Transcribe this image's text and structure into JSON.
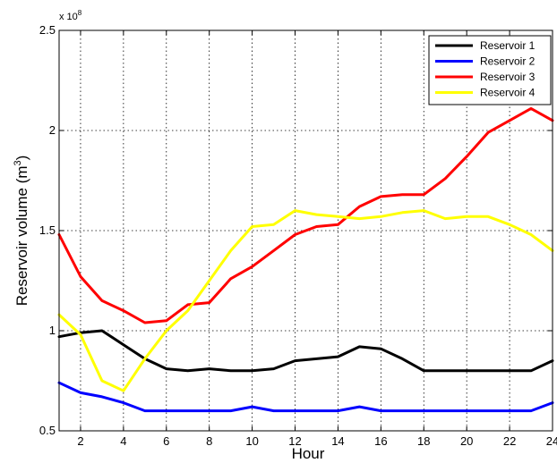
{
  "chart_data": {
    "type": "line",
    "title": "",
    "xlabel": "Hour",
    "ylabel": "Reservoir volume (m",
    "ylabel_superscript": "3",
    "ylabel_close": ")",
    "y_exponent_label": "x 10",
    "y_exponent_power": "8",
    "xlim": [
      1,
      24
    ],
    "ylim": [
      0.5,
      2.5
    ],
    "xticks": [
      2,
      4,
      6,
      8,
      10,
      12,
      14,
      16,
      18,
      20,
      22,
      24
    ],
    "xtick_labels": [
      "2",
      "4",
      "6",
      "8",
      "10",
      "12",
      "14",
      "16",
      "18",
      "20",
      "22",
      "24"
    ],
    "yticks": [
      0.5,
      1,
      1.5,
      2,
      2.5
    ],
    "ytick_labels": [
      "0.5",
      "1",
      "1.5",
      "2",
      "2.5"
    ],
    "grid": true,
    "legend_position": "top-right",
    "x": [
      1,
      2,
      3,
      4,
      5,
      6,
      7,
      8,
      9,
      10,
      11,
      12,
      13,
      14,
      15,
      16,
      17,
      18,
      19,
      20,
      21,
      22,
      23,
      24
    ],
    "series": [
      {
        "name": "Reservoir 1",
        "color": "#000000",
        "values": [
          0.97,
          0.99,
          1.0,
          0.93,
          0.86,
          0.81,
          0.8,
          0.81,
          0.8,
          0.8,
          0.81,
          0.85,
          0.86,
          0.87,
          0.92,
          0.91,
          0.86,
          0.8,
          0.8,
          0.8,
          0.8,
          0.8,
          0.8,
          0.85
        ]
      },
      {
        "name": "Reservoir 2",
        "color": "#0000ff",
        "values": [
          0.74,
          0.69,
          0.67,
          0.64,
          0.6,
          0.6,
          0.6,
          0.6,
          0.6,
          0.62,
          0.6,
          0.6,
          0.6,
          0.6,
          0.62,
          0.6,
          0.6,
          0.6,
          0.6,
          0.6,
          0.6,
          0.6,
          0.6,
          0.64
        ]
      },
      {
        "name": "Reservoir 3",
        "color": "#ff0000",
        "values": [
          1.48,
          1.27,
          1.15,
          1.1,
          1.04,
          1.05,
          1.13,
          1.14,
          1.26,
          1.32,
          1.4,
          1.48,
          1.52,
          1.53,
          1.62,
          1.67,
          1.68,
          1.68,
          1.76,
          1.87,
          1.99,
          2.05,
          2.11,
          2.05
        ]
      },
      {
        "name": "Reservoir 4",
        "color": "#ffff00",
        "values": [
          1.08,
          0.98,
          0.75,
          0.7,
          0.86,
          1.0,
          1.1,
          1.25,
          1.4,
          1.52,
          1.53,
          1.6,
          1.58,
          1.57,
          1.56,
          1.57,
          1.59,
          1.6,
          1.56,
          1.57,
          1.57,
          1.53,
          1.48,
          1.4
        ]
      }
    ]
  }
}
